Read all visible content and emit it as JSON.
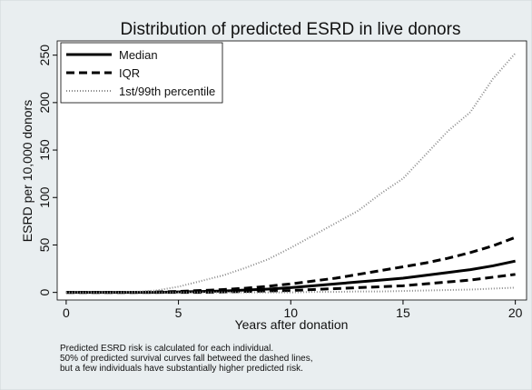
{
  "chart_data": {
    "type": "line",
    "title": "Distribution of predicted ESRD in live donors",
    "xlabel": "Years after donation",
    "ylabel": "ESRD per 10,000 donors",
    "notes": [
      "Predicted ESRD risk is calculated for each individual.",
      "50% of predicted survival curves fall betweed the dashed lines,",
      "but a few individuals have substantially higher predicted risk."
    ],
    "x": [
      0,
      1,
      2,
      3,
      4,
      5,
      6,
      7,
      8,
      9,
      10,
      11,
      12,
      13,
      14,
      15,
      16,
      17,
      18,
      19,
      20
    ],
    "series": [
      {
        "name": "Median",
        "color": "#000000",
        "dash": "solid",
        "values": [
          0,
          0,
          0,
          0,
          0,
          0.5,
          1,
          1.5,
          2.5,
          3.5,
          5,
          7,
          9,
          11,
          13,
          15,
          18,
          21,
          24,
          28,
          33
        ]
      },
      {
        "name": "IQR",
        "color": "#000000",
        "dash": "dashed",
        "lower": [
          0,
          0,
          0,
          0,
          0,
          0,
          0,
          0.5,
          1,
          1.5,
          2,
          3,
          4,
          5,
          6,
          7,
          9,
          11,
          13,
          16,
          19
        ],
        "upper": [
          0,
          0,
          0,
          0,
          0.5,
          1,
          2,
          3,
          4.5,
          6.5,
          9,
          12,
          15,
          19,
          23,
          27,
          31,
          36,
          42,
          49,
          58
        ]
      },
      {
        "name": "1st/99th percentile",
        "color": "#8a8a8a",
        "dash": "dotted",
        "lower": [
          0,
          0,
          0,
          0,
          0,
          0,
          0,
          0,
          0,
          0,
          0,
          0.5,
          0.5,
          1,
          1,
          1.5,
          2,
          2.5,
          3,
          4,
          5
        ],
        "upper": [
          0,
          0,
          0,
          0.5,
          2,
          6,
          12,
          18,
          26,
          35,
          47,
          60,
          73,
          86,
          104,
          120,
          145,
          170,
          190,
          225,
          252
        ]
      }
    ],
    "xlim": [
      -0.4,
      20.5
    ],
    "ylim": [
      -8,
      265
    ],
    "xticks": [
      0,
      5,
      10,
      15,
      20
    ],
    "yticks": [
      0,
      50,
      100,
      150,
      200,
      250
    ],
    "grid": false,
    "legend": "top-left"
  }
}
